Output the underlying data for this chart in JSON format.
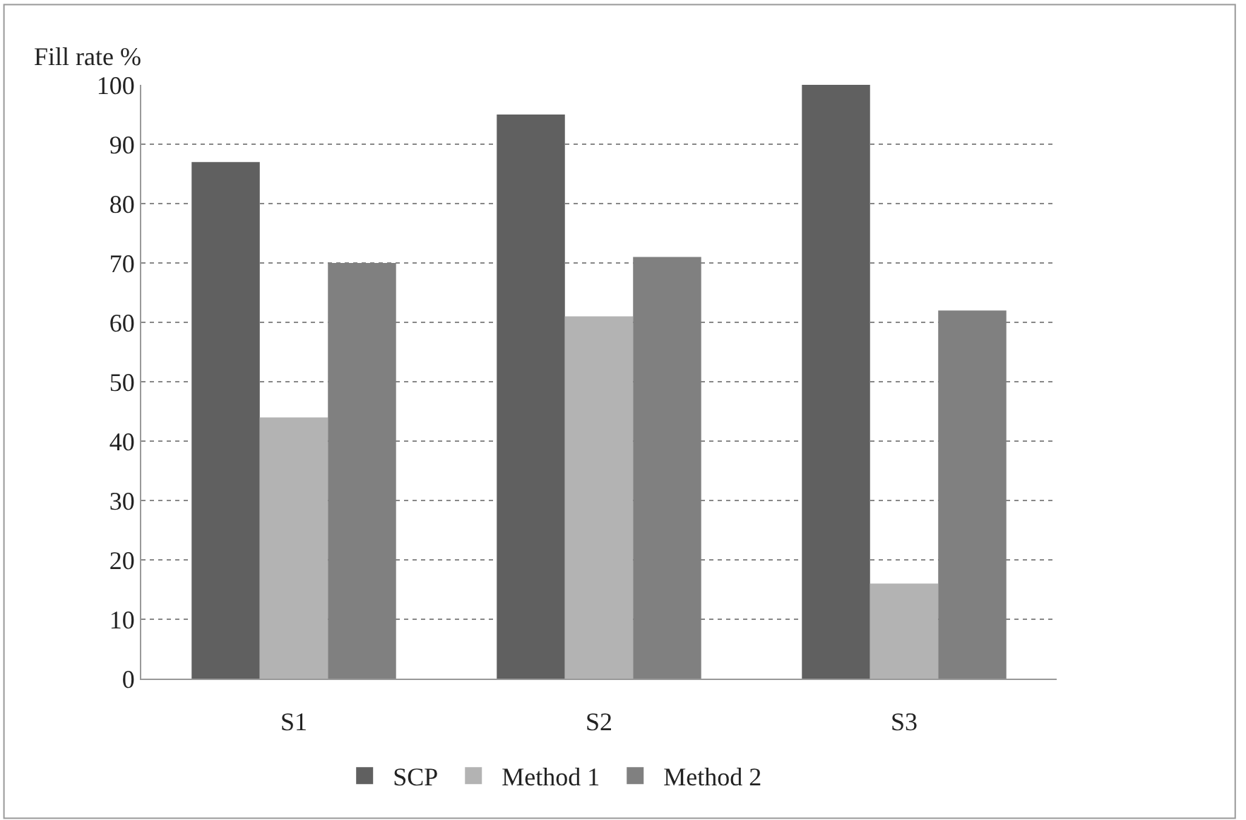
{
  "chart_data": {
    "type": "bar",
    "ylabel": "Fill rate %",
    "categories": [
      "S1",
      "S2",
      "S3"
    ],
    "series": [
      {
        "name": "SCP",
        "color": "#606060",
        "values": [
          87,
          95,
          100
        ]
      },
      {
        "name": "Method 1",
        "color": "#b3b3b3",
        "values": [
          44,
          61,
          16
        ]
      },
      {
        "name": "Method 2",
        "color": "#808080",
        "values": [
          70,
          71,
          62
        ]
      }
    ],
    "ylim": [
      0,
      100
    ],
    "yticks": [
      0,
      10,
      20,
      30,
      40,
      50,
      60,
      70,
      80,
      90,
      100
    ],
    "grid": "y",
    "legend": "bottom"
  }
}
